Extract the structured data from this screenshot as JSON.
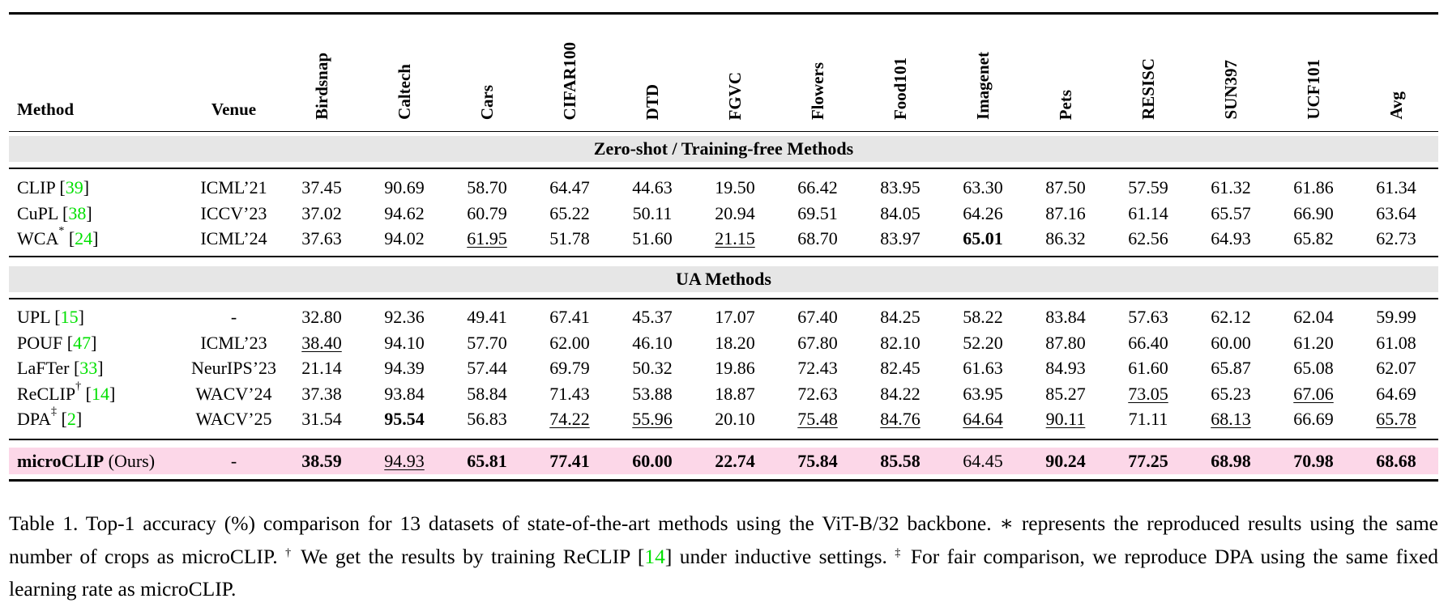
{
  "columns": {
    "method": "Method",
    "venue": "Venue",
    "datasets": [
      "Birdsnap",
      "Caltech",
      "Cars",
      "CIFAR100",
      "DTD",
      "FGVC",
      "Flowers",
      "Food101",
      "Imagenet",
      "Pets",
      "RESISC",
      "SUN397",
      "UCF101",
      "Avg"
    ]
  },
  "sections": [
    {
      "title": "Zero-shot / Training-free Methods",
      "rows": [
        {
          "method": "CLIP",
          "sup": "",
          "cite": "39",
          "venue": "ICML’21",
          "values": [
            "37.45",
            "90.69",
            "58.70",
            "64.47",
            "44.63",
            "19.50",
            "66.42",
            "83.95",
            "63.30",
            "87.50",
            "57.59",
            "61.32",
            "61.86",
            "61.34"
          ],
          "bold": [],
          "underline": []
        },
        {
          "method": "CuPL",
          "sup": "",
          "cite": "38",
          "venue": "ICCV’23",
          "values": [
            "37.02",
            "94.62",
            "60.79",
            "65.22",
            "50.11",
            "20.94",
            "69.51",
            "84.05",
            "64.26",
            "87.16",
            "61.14",
            "65.57",
            "66.90",
            "63.64"
          ],
          "bold": [],
          "underline": []
        },
        {
          "method": "WCA",
          "sup": "*",
          "cite": "24",
          "venue": "ICML’24",
          "values": [
            "37.63",
            "94.02",
            "61.95",
            "51.78",
            "51.60",
            "21.15",
            "68.70",
            "83.97",
            "65.01",
            "86.32",
            "62.56",
            "64.93",
            "65.82",
            "62.73"
          ],
          "bold": [
            8
          ],
          "underline": [
            2,
            5
          ]
        }
      ]
    },
    {
      "title": "UA Methods",
      "rows": [
        {
          "method": "UPL",
          "sup": "",
          "cite": "15",
          "venue": "-",
          "values": [
            "32.80",
            "92.36",
            "49.41",
            "67.41",
            "45.37",
            "17.07",
            "67.40",
            "84.25",
            "58.22",
            "83.84",
            "57.63",
            "62.12",
            "62.04",
            "59.99"
          ],
          "bold": [],
          "underline": []
        },
        {
          "method": "POUF",
          "sup": "",
          "cite": "47",
          "venue": "ICML’23",
          "values": [
            "38.40",
            "94.10",
            "57.70",
            "62.00",
            "46.10",
            "18.20",
            "67.80",
            "82.10",
            "52.20",
            "87.80",
            "66.40",
            "60.00",
            "61.20",
            "61.08"
          ],
          "bold": [],
          "underline": [
            0
          ]
        },
        {
          "method": "LaFTer",
          "sup": "",
          "cite": "33",
          "venue": "NeurIPS’23",
          "values": [
            "21.14",
            "94.39",
            "57.44",
            "69.79",
            "50.32",
            "19.86",
            "72.43",
            "82.45",
            "61.63",
            "84.93",
            "61.60",
            "65.87",
            "65.08",
            "62.07"
          ],
          "bold": [],
          "underline": []
        },
        {
          "method": "ReCLIP",
          "sup": "†",
          "cite": "14",
          "venue": "WACV’24",
          "values": [
            "37.38",
            "93.84",
            "58.84",
            "71.43",
            "53.88",
            "18.87",
            "72.63",
            "84.22",
            "63.95",
            "85.27",
            "73.05",
            "65.23",
            "67.06",
            "64.69"
          ],
          "bold": [],
          "underline": [
            10,
            12
          ]
        },
        {
          "method": "DPA",
          "sup": "‡",
          "cite": "2",
          "venue": "WACV’25",
          "values": [
            "31.54",
            "95.54",
            "56.83",
            "74.22",
            "55.96",
            "20.10",
            "75.48",
            "84.76",
            "64.64",
            "90.11",
            "71.11",
            "68.13",
            "66.69",
            "65.78"
          ],
          "bold": [
            1
          ],
          "underline": [
            3,
            4,
            6,
            7,
            8,
            9,
            11,
            13
          ]
        }
      ]
    }
  ],
  "ours": {
    "method": "microCLIP",
    "suffix": "(Ours)",
    "venue": "-",
    "values": [
      "38.59",
      "94.93",
      "65.81",
      "77.41",
      "60.00",
      "22.74",
      "75.84",
      "85.58",
      "64.45",
      "90.24",
      "77.25",
      "68.98",
      "70.98",
      "68.68"
    ],
    "bold": [
      0,
      2,
      3,
      4,
      5,
      6,
      7,
      9,
      10,
      11,
      12,
      13
    ],
    "underline": [
      1
    ],
    "highlight_color": "#fcd7e8"
  },
  "colors": {
    "citation": "#00e000",
    "section_band": "#e6e6e6"
  },
  "caption": {
    "part1": "Table 1. Top-1 accuracy (%) comparison for 13 datasets of state-of-the-art methods using the ViT-B/32 backbone. ∗ represents the reproduced results using the same number of crops as microCLIP. ",
    "sup1": "†",
    "part2": " We get the results by training ReCLIP ",
    "cite": "14",
    "part3": " under inductive settings. ",
    "sup2": "‡",
    "part4": " For fair comparison, we reproduce DPA using the same fixed learning rate as microCLIP."
  }
}
